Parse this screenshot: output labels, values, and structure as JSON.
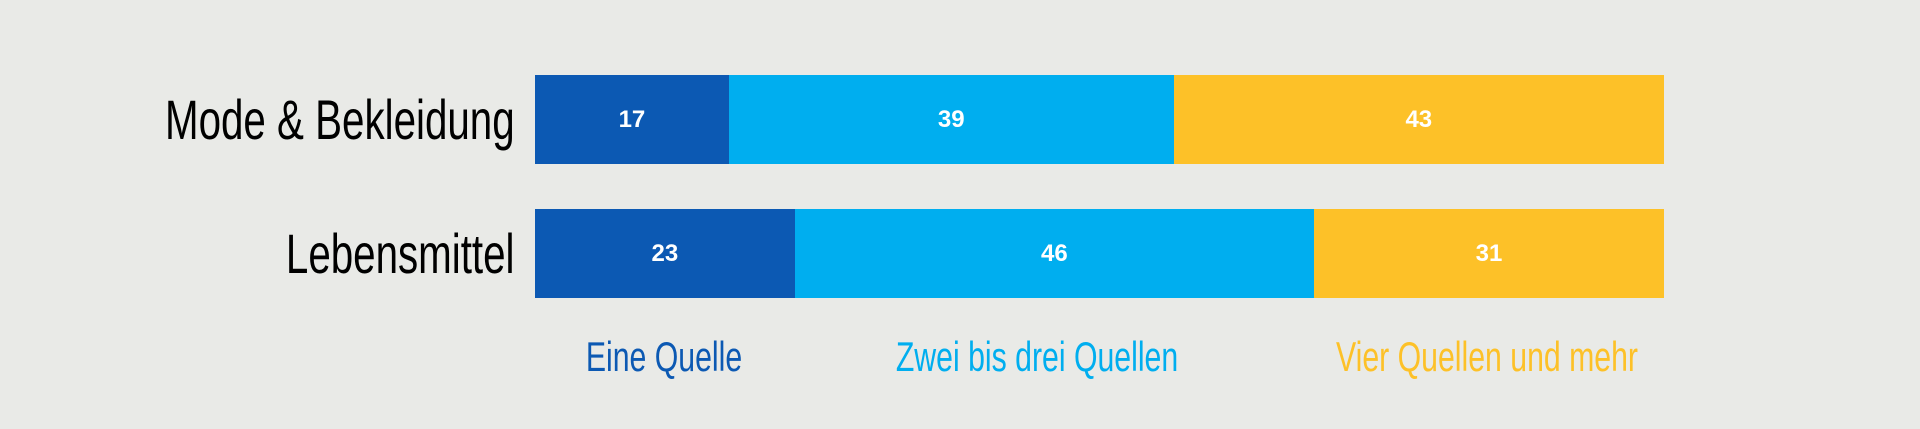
{
  "chart_data": {
    "type": "bar",
    "orientation": "horizontal",
    "stacked": true,
    "categories": [
      "Mode & Bekleidung",
      "Lebensmittel"
    ],
    "series": [
      {
        "name": "Eine Quelle",
        "values": [
          17,
          23
        ],
        "color": "#0c59b3"
      },
      {
        "name": "Zwei bis drei Quellen",
        "values": [
          39,
          46
        ],
        "color": "#00aeef"
      },
      {
        "name": "Vier Quellen und mehr",
        "values": [
          43,
          31
        ],
        "color": "#fdc128"
      }
    ],
    "legend_position": "bottom",
    "grid": false,
    "background": "#e9eae7"
  }
}
